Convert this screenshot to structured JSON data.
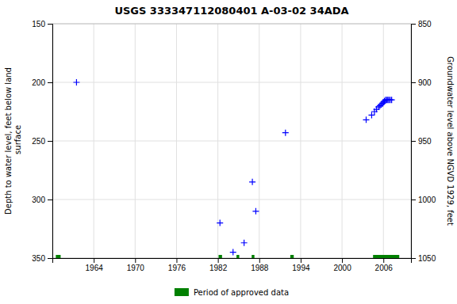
{
  "chart_data": {
    "type": "scatter",
    "title": "USGS 333347112080401 A-03-02 34ADA",
    "ylabel": "Depth to water level, feet below land\n surface",
    "y2label": "Groundwater level above NGVD 1929, feet",
    "xlim": [
      1958,
      2010
    ],
    "xticks": [
      1964,
      1970,
      1976,
      1982,
      1988,
      1994,
      2000,
      2006
    ],
    "ylim": [
      350,
      150
    ],
    "yticks": [
      150,
      200,
      250,
      300,
      350
    ],
    "y2lim": [
      1050,
      850
    ],
    "y2ticks": [
      1050,
      1000,
      950,
      900,
      850
    ],
    "grid": true,
    "legend": "bottom",
    "series": [
      {
        "type": "scatter",
        "color": "#0000ff",
        "marker": "plus",
        "x": [
          1961.5,
          1982.3,
          1984.2,
          1985.8,
          1987.0,
          1987.5,
          1991.8,
          2003.5,
          2004.3,
          2004.7,
          2005.0,
          2005.3,
          2005.5,
          2005.7,
          2005.9,
          2006.0,
          2006.15,
          2006.3,
          2006.5,
          2006.65,
          2006.8,
          2007.0,
          2007.2
        ],
        "values": [
          200,
          320,
          345,
          337,
          285,
          310,
          243,
          232,
          228,
          225,
          223,
          221,
          220,
          219,
          218,
          217,
          216,
          215,
          215,
          215,
          215,
          215,
          215
        ]
      },
      {
        "name": "Period of approved data",
        "type": "span",
        "color": "#008000",
        "x": [
          [
            1958.5,
            1959.2
          ],
          [
            1982.1,
            1982.6
          ],
          [
            1984.7,
            1985.1
          ],
          [
            1986.9,
            1987.3
          ],
          [
            1992.5,
            1993.0
          ],
          [
            2004.5,
            2008.3
          ]
        ],
        "values": [
          350,
          350,
          350,
          350,
          350,
          350
        ]
      }
    ]
  }
}
